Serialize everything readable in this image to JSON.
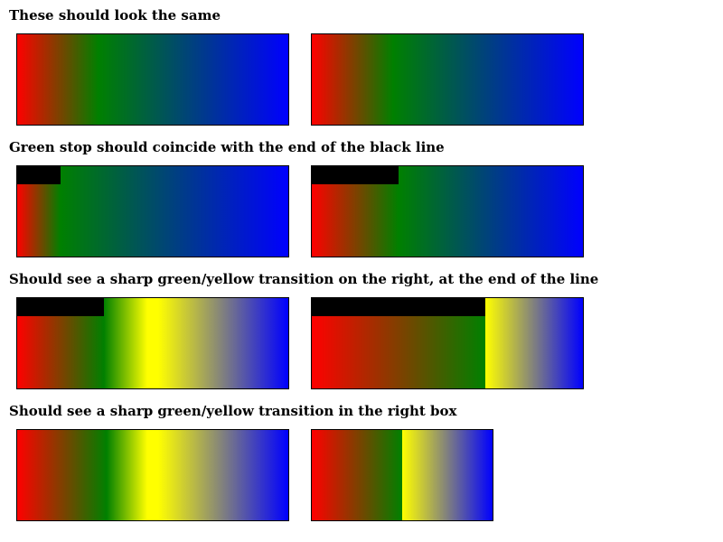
{
  "headings": {
    "row1": "These should look the same",
    "row2": "Green stop should coincide with the end of the black line",
    "row3": "Should see a sharp green/yellow transition on the right, at the end of the line",
    "row4": "Should see a sharp green/yellow transition in the right box"
  },
  "colors": {
    "red": "#ff0000",
    "green": "#008000",
    "yellow": "#ffff00",
    "blue": "#0000ff",
    "line": "#000000",
    "border": "#000000"
  }
}
